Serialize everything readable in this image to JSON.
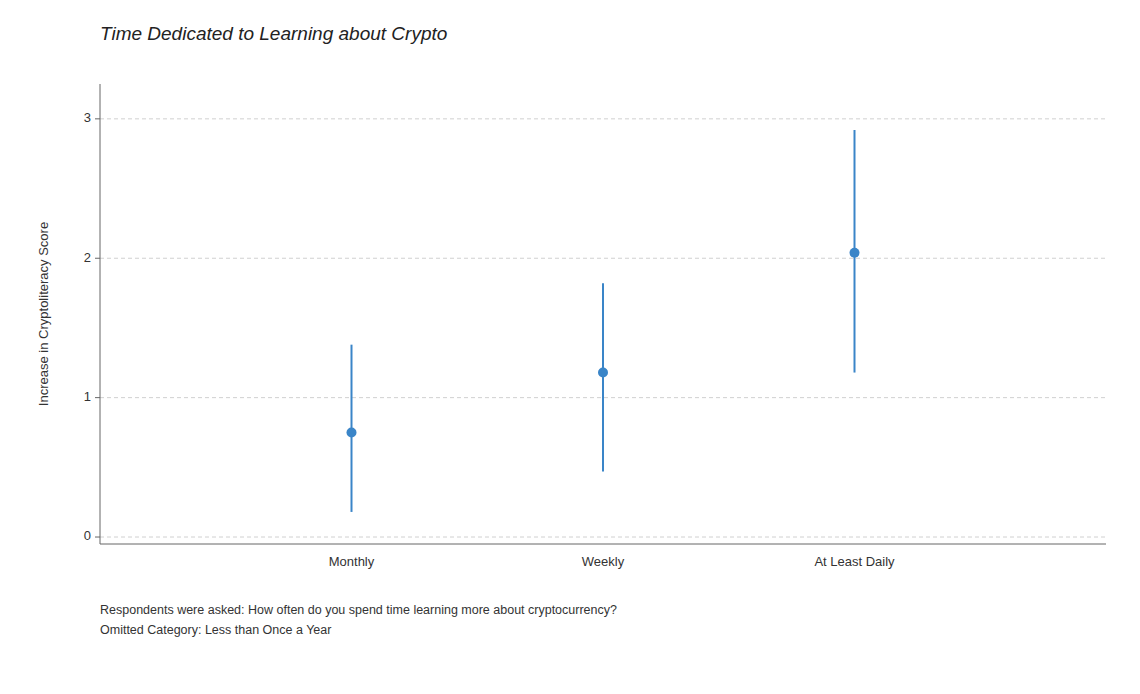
{
  "chart_data": {
    "type": "errorbar",
    "title": "Time Dedicated to Learning about Crypto",
    "ylabel": "Increase in Cryptoliteracy Score",
    "annotations": [
      "Respondents were asked: How often do you spend time learning more about cryptocurrency?",
      "Omitted Category: Less than Once a Year"
    ],
    "categories": [
      "Monthly",
      "Weekly",
      "At Least Daily"
    ],
    "values": [
      0.75,
      1.18,
      2.04
    ],
    "ci_low": [
      0.18,
      0.47,
      1.18
    ],
    "ci_high": [
      1.38,
      1.82,
      2.92
    ],
    "color": "#3a85c8",
    "ylim": [
      -0.05,
      3.25
    ],
    "yticks": [
      0,
      1,
      2,
      3
    ],
    "grid": true
  }
}
